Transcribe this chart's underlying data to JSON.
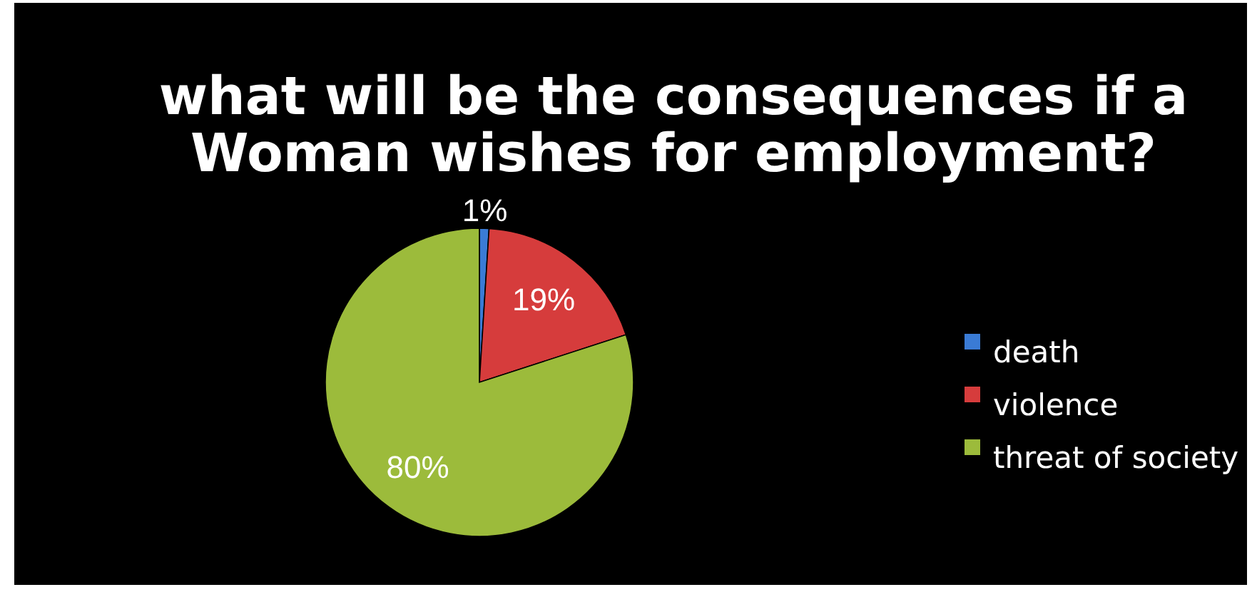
{
  "chart_data": {
    "type": "pie",
    "title": "what will be the consequences if a Woman wishes for employment?",
    "categories": [
      "death",
      "violence",
      "threat of society"
    ],
    "values": [
      1,
      19,
      80
    ],
    "value_labels": [
      "1%",
      "19%",
      "80%"
    ],
    "colors": [
      "#3a7bd5",
      "#d63c3c",
      "#9cbb3b"
    ],
    "legend": "right"
  }
}
